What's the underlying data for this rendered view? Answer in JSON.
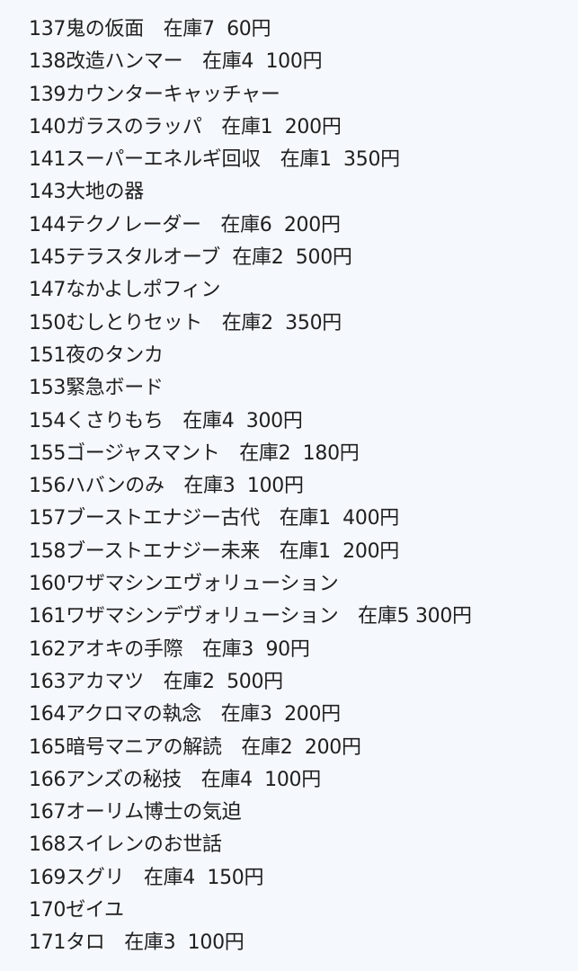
{
  "items": [
    "137鬼の仮面　在庫7  60円",
    "138改造ハンマー　在庫4  100円",
    "139カウンターキャッチャー",
    "140ガラスのラッパ　在庫1  200円",
    "141スーパーエネルギ回収　在庫1  350円",
    "143大地の器",
    "144テクノレーダー　在庫6  200円",
    "145テラスタルオーブ  在庫2  500円",
    "147なかよしポフィン",
    "150むしとりセット　在庫2  350円",
    "151夜のタンカ",
    "153緊急ボード",
    "154くさりもち　在庫4  300円",
    "155ゴージャスマント　在庫2  180円",
    "156ハバンのみ　在庫3  100円",
    "157ブーストエナジー古代　在庫1  400円",
    "158ブーストエナジー未来　在庫1  200円",
    "160ワザマシンエヴォリューション",
    "161ワザマシンデヴォリューション　在庫5 300円",
    "162アオキの手際　在庫3  90円",
    "163アカマツ　在庫2  500円",
    "164アクロマの執念　在庫3  200円",
    "165暗号マニアの解読　在庫2  200円",
    "166アンズの秘技　在庫4  100円",
    "167オーリム博士の気迫",
    "168スイレンのお世話",
    "169スグリ　在庫4  150円",
    "170ゼイユ",
    "171タロ　在庫3  100円"
  ]
}
